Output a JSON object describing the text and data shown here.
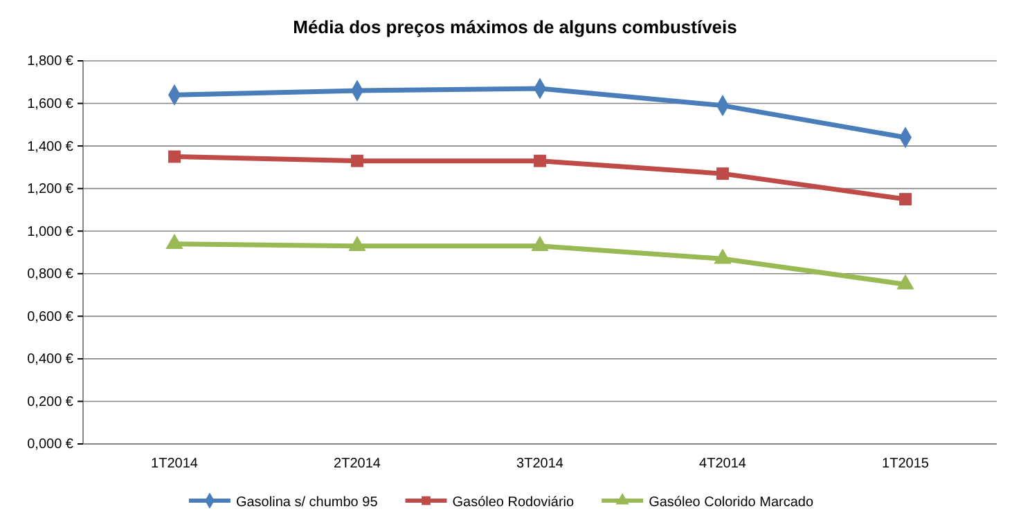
{
  "chart_data": {
    "type": "line",
    "title": "Média dos preços máximos de alguns combustíveis",
    "categories": [
      "1T2014",
      "2T2014",
      "3T2014",
      "4T2014",
      "1T2015"
    ],
    "series": [
      {
        "name": "Gasolina s/ chumbo 95",
        "color": "#4a7ebb",
        "marker": "diamond",
        "values": [
          1.64,
          1.66,
          1.67,
          1.59,
          1.44
        ]
      },
      {
        "name": "Gasóleo Rodoviário",
        "color": "#be4b48",
        "marker": "square",
        "values": [
          1.35,
          1.33,
          1.33,
          1.27,
          1.15
        ]
      },
      {
        "name": "Gasóleo Colorido Marcado",
        "color": "#98b954",
        "marker": "triangle",
        "values": [
          0.94,
          0.93,
          0.93,
          0.87,
          0.75
        ]
      }
    ],
    "ylim": [
      0,
      1.8
    ],
    "yticks": [
      {
        "value": 0,
        "label": "0,000 €"
      },
      {
        "value": 0.2,
        "label": "0,200 €"
      },
      {
        "value": 0.4,
        "label": "0,400 €"
      },
      {
        "value": 0.6,
        "label": "0,600 €"
      },
      {
        "value": 0.8,
        "label": "0,800 €"
      },
      {
        "value": 1,
        "label": "1,000 €"
      },
      {
        "value": 1.2,
        "label": "1,200 €"
      },
      {
        "value": 1.4,
        "label": "1,400 €"
      },
      {
        "value": 1.6,
        "label": "1,600 €"
      },
      {
        "value": 1.8,
        "label": "1,800 €"
      }
    ],
    "grid": "y",
    "legend": "bottom"
  }
}
